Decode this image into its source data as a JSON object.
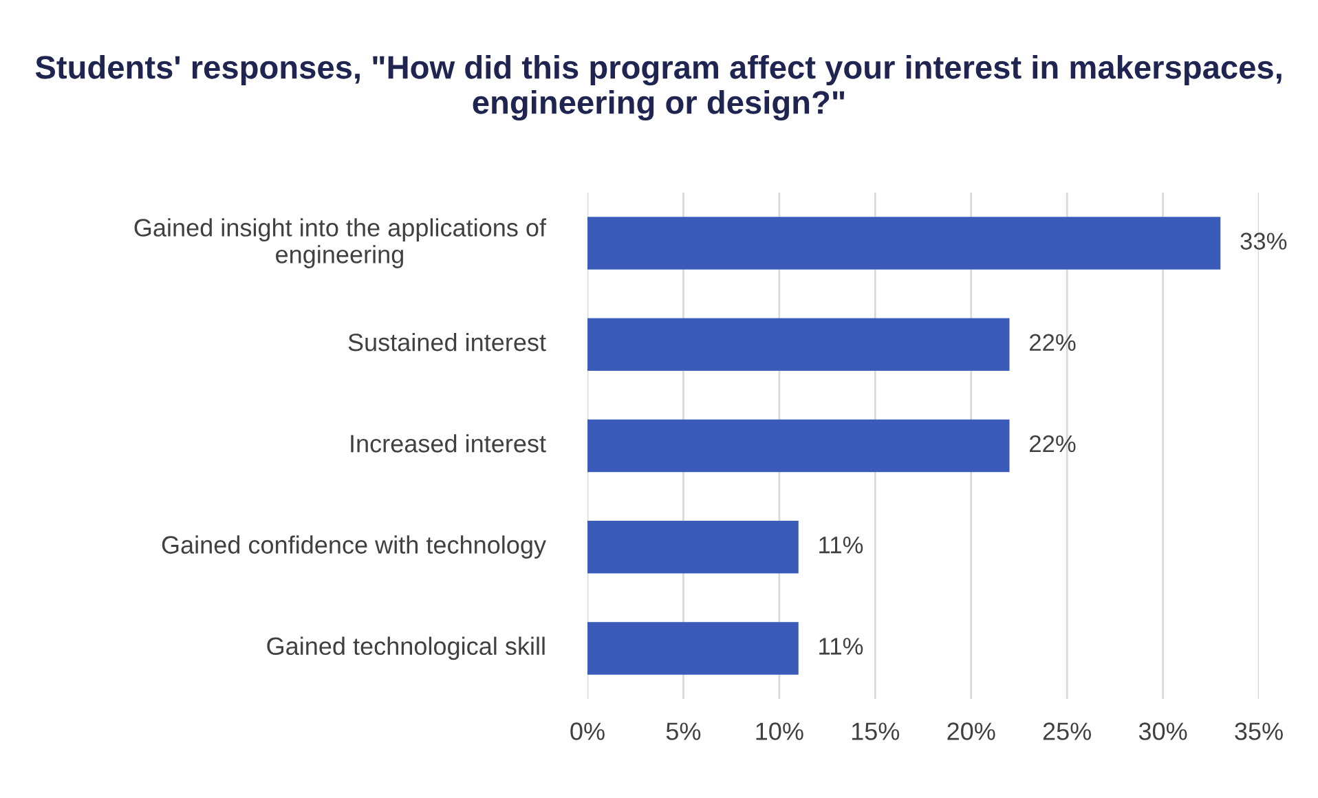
{
  "chart_data": {
    "type": "bar",
    "orientation": "horizontal",
    "title": "Students' responses, \"How did this program affect your interest in makerspaces, engineering or design?\"",
    "categories": [
      "Gained insight into the applications of engineering",
      "Sustained interest",
      "Increased interest",
      "Gained confidence with technology",
      "Gained technological skill"
    ],
    "values": [
      33,
      22,
      22,
      11,
      11
    ],
    "value_labels": [
      "33%",
      "22%",
      "22%",
      "11%",
      "11%"
    ],
    "color": "#3a5cb8",
    "xlim": [
      0,
      35
    ],
    "xticks": [
      {
        "value": 0,
        "label": "0%"
      },
      {
        "value": 5,
        "label": "5%"
      },
      {
        "value": 10,
        "label": "10%"
      },
      {
        "value": 15,
        "label": "15%"
      },
      {
        "value": 20,
        "label": "20%"
      },
      {
        "value": 25,
        "label": "25%"
      },
      {
        "value": 30,
        "label": "30%"
      },
      {
        "value": 35,
        "label": "35%"
      }
    ],
    "grid": "x"
  }
}
